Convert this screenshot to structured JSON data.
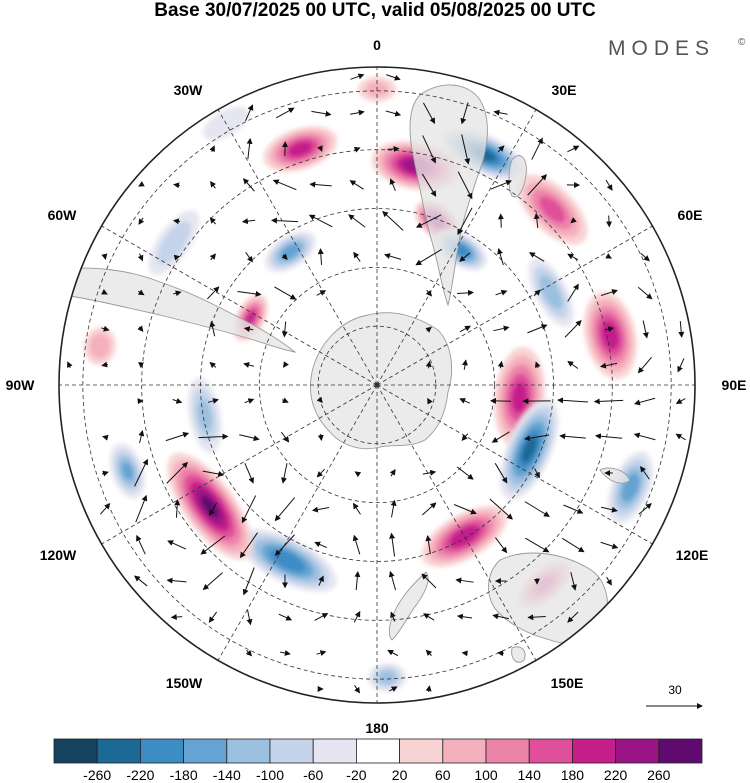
{
  "title": "Base 30/07/2025 00 UTC, valid 05/08/2025 00 UTC",
  "brand": "MODES",
  "brand_mark": "©",
  "longitude_labels": [
    "0",
    "30E",
    "60E",
    "90E",
    "120E",
    "150E",
    "180",
    "150W",
    "120W",
    "90W",
    "60W",
    "30W"
  ],
  "reference_vector": {
    "label": "30"
  },
  "colorbar": {
    "labels": [
      "-260",
      "-220",
      "-180",
      "-140",
      "-100",
      "-60",
      "-20",
      "20",
      "60",
      "100",
      "140",
      "180",
      "220",
      "260"
    ],
    "colors": [
      "#15425f",
      "#1c6896",
      "#3e8cc4",
      "#64a3d2",
      "#9cc0e0",
      "#c5d4ea",
      "#e6e6f2",
      "#ffffff",
      "#f9d4d4",
      "#f5b0bd",
      "#ec84aa",
      "#e0509a",
      "#c41f8b",
      "#9a1485",
      "#5e0a6e"
    ]
  },
  "colors": {
    "land": "#e6e6e6",
    "coast": "#999999",
    "grid": "#333333",
    "arrow": "#111111"
  },
  "anomalies": [
    {
      "lon": 10,
      "r": 0.7,
      "v": 240,
      "a": 0.14,
      "b": 0.075,
      "rot": 0
    },
    {
      "lon": 20,
      "r": 0.55,
      "v": 250,
      "a": 0.08,
      "b": 0.05,
      "rot": 20
    },
    {
      "lon": 25,
      "r": 0.8,
      "v": -240,
      "a": 0.14,
      "b": 0.06,
      "rot": 0
    },
    {
      "lon": 32,
      "r": 0.5,
      "v": -200,
      "a": 0.09,
      "b": 0.05,
      "rot": 0
    },
    {
      "lon": 45,
      "r": 0.78,
      "v": 150,
      "a": 0.14,
      "b": 0.07,
      "rot": 0
    },
    {
      "lon": 62,
      "r": 0.62,
      "v": -120,
      "a": 0.12,
      "b": 0.05,
      "rot": 0
    },
    {
      "lon": 78,
      "r": 0.75,
      "v": 200,
      "a": 0.14,
      "b": 0.08,
      "rot": 0
    },
    {
      "lon": 95,
      "r": 0.45,
      "v": 190,
      "a": 0.16,
      "b": 0.08,
      "rot": 0
    },
    {
      "lon": 113,
      "r": 0.52,
      "v": -230,
      "a": 0.17,
      "b": 0.07,
      "rot": 0
    },
    {
      "lon": 112,
      "r": 0.86,
      "v": -160,
      "a": 0.12,
      "b": 0.06,
      "rot": 0
    },
    {
      "lon": 150,
      "r": 0.55,
      "v": 210,
      "a": 0.15,
      "b": 0.07,
      "rot": 0
    },
    {
      "lon": 140,
      "r": 0.82,
      "v": 150,
      "a": 0.1,
      "b": 0.05,
      "rot": 0
    },
    {
      "lon": 178,
      "r": 0.92,
      "v": -110,
      "a": 0.06,
      "b": 0.045,
      "rot": 0
    },
    {
      "lon": -153,
      "r": 0.62,
      "v": -210,
      "a": 0.17,
      "b": 0.07,
      "rot": 0
    },
    {
      "lon": -126,
      "r": 0.65,
      "v": 260,
      "a": 0.2,
      "b": 0.08,
      "rot": 0
    },
    {
      "lon": -109,
      "r": 0.83,
      "v": -140,
      "a": 0.09,
      "b": 0.05,
      "rot": 0
    },
    {
      "lon": -100,
      "r": 0.55,
      "v": -100,
      "a": 0.12,
      "b": 0.05,
      "rot": 0
    },
    {
      "lon": -82,
      "r": 0.88,
      "v": 80,
      "a": 0.06,
      "b": 0.05,
      "rot": 0
    },
    {
      "lon": -62,
      "r": 0.45,
      "v": 180,
      "a": 0.08,
      "b": 0.045,
      "rot": 0
    },
    {
      "lon": -55,
      "r": 0.78,
      "v": -80,
      "a": 0.12,
      "b": 0.05,
      "rot": 0
    },
    {
      "lon": -33,
      "r": 0.5,
      "v": -160,
      "a": 0.09,
      "b": 0.05,
      "rot": 0
    },
    {
      "lon": -18,
      "r": 0.78,
      "v": 200,
      "a": 0.12,
      "b": 0.065,
      "rot": 0
    },
    {
      "lon": -30,
      "r": 0.95,
      "v": -40,
      "a": 0.08,
      "b": 0.04,
      "rot": 0
    },
    {
      "lon": 0,
      "r": 0.93,
      "v": 60,
      "a": 0.06,
      "b": 0.04,
      "rot": 0
    }
  ]
}
